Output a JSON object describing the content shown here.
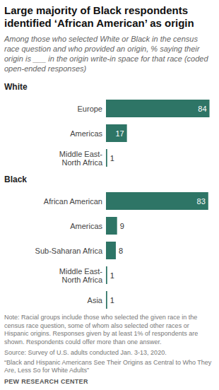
{
  "title": "Large majority of Black respondents identified ‘African American’ as origin",
  "subtitle": "Among those who selected White or Black in the census race question and who provided an origin, % saying their origin is ___ in the origin write-in space for that race (coded open-ended responses)",
  "note": "Note: Racial groups include those who selected the given race in the census race question, some of whom also selected other races or Hispanic origins. Responses given by at least 1% of respondents are shown. Respondents could offer more than one answer.",
  "source": "Source: Survey of U.S. adults conducted Jan. 3-13, 2020.",
  "report": "“Black and Hispanic Americans See Their Origins as Central to Who They Are, Less So for White Adults”",
  "credit": "PEW RESEARCH CENTER",
  "chart_data": [
    {
      "type": "bar",
      "title": "White",
      "orientation": "horizontal",
      "data_labels": true,
      "tick_labels": "y",
      "categories": [
        "Europe",
        "Americas",
        "Middle East-North Africa"
      ],
      "values": [
        84,
        17,
        1
      ],
      "color": "#2e7566",
      "xlim": [
        0,
        90
      ]
    },
    {
      "type": "bar",
      "title": "Black",
      "orientation": "horizontal",
      "data_labels": true,
      "tick_labels": "y",
      "categories": [
        "African American",
        "Americas",
        "Sub-Saharan Africa",
        "Middle East-North Africa",
        "Asia"
      ],
      "values": [
        83,
        9,
        8,
        1,
        1
      ],
      "color": "#2e7566",
      "xlim": [
        0,
        90
      ]
    }
  ]
}
